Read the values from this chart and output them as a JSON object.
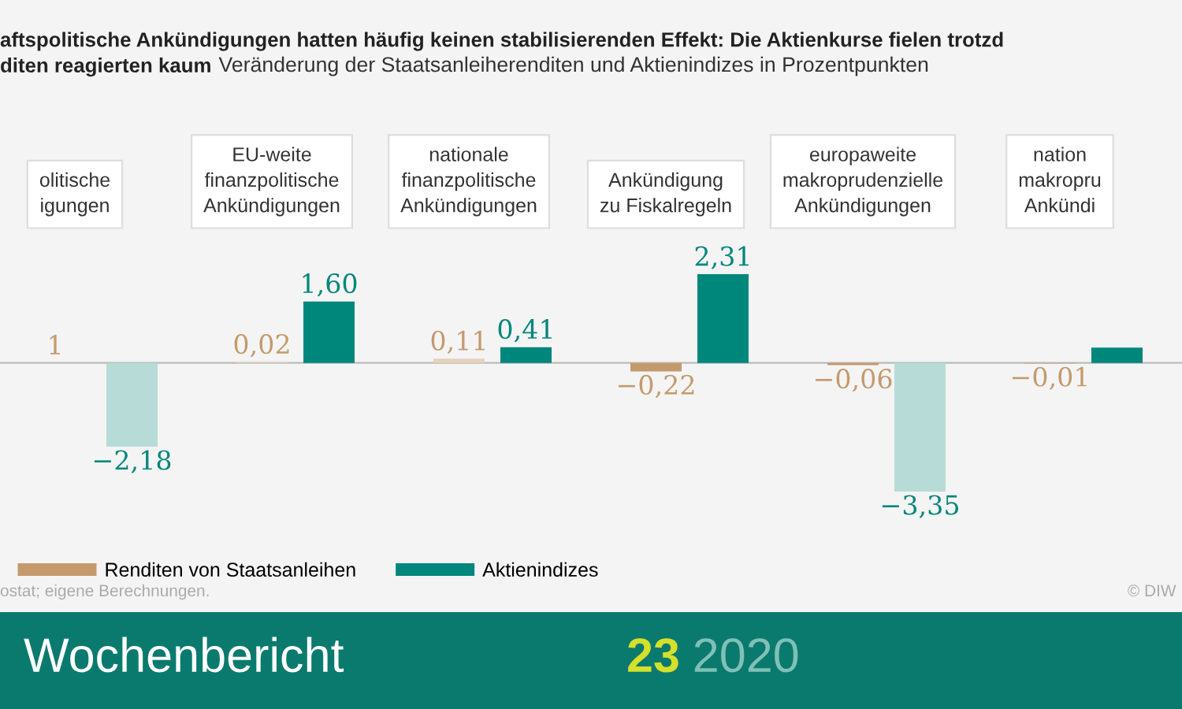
{
  "chart_data": {
    "type": "bar",
    "title": "aftspolitische Ankündigungen hatten häufig keinen stabilisierenden Effekt: Die Aktienkurse fielen trotzd\nditen reagierten kaum",
    "subtitle": "Veränderung der Staatsanleiherenditen und Aktienindizes in Prozentpunkten",
    "categories": [
      "olitische\nigungen",
      "EU-weite\nfinanzpolitische\nAnkündigungen",
      "nationale\nfinanzpolitische\nAnkündigungen",
      "Ankündigung\nzu Fiskalregeln",
      "europaweite\nmakroprudenzielle\nAnkündigungen",
      "nation\nmakropru\nAnkündi"
    ],
    "series": [
      {
        "name": "Renditen von Staatsanleihen",
        "color": "#c49a6c",
        "colors": [
          "#c49a6c",
          "#e6d2ba",
          "#e6d2ba",
          "#c49a6c",
          "#c49a6c",
          "#c49a6c"
        ],
        "values": [
          null,
          0.02,
          0.11,
          -0.22,
          -0.06,
          -0.01
        ],
        "value_labels": [
          "1",
          "0,02",
          "0,11",
          "−0,22",
          "−0,06",
          "−0,01"
        ]
      },
      {
        "name": "Aktienindizes",
        "color": "#00877b",
        "colors": [
          "#b7dcd7",
          "#00877b",
          "#00877b",
          "#00877b",
          "#b7dcd7",
          "#00877b"
        ],
        "values": [
          -2.18,
          1.6,
          0.41,
          2.31,
          -3.35,
          0.4
        ],
        "value_labels": [
          "−2,18",
          "1,60",
          "0,41",
          "2,31",
          "−3,35",
          null
        ]
      }
    ],
    "legend": "bottom left",
    "annotations": [
      "ostat; eigene Berechnungen.",
      "© DIW",
      "Wochenbericht",
      "23 2020"
    ]
  }
}
